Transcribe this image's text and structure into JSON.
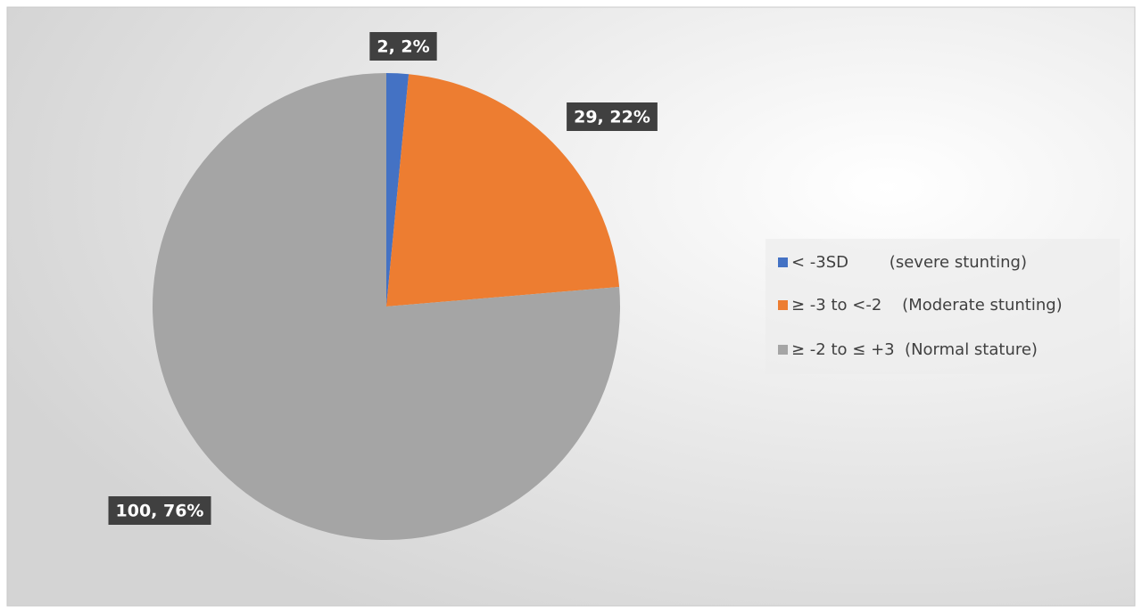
{
  "chart_data": {
    "type": "pie",
    "categories": [
      "< -3SD        (severe stunting)",
      "≥ -3 to <-2    (Moderate stunting)",
      "≥ -2 to ≤ +3  (Normal stature)"
    ],
    "values": [
      2,
      29,
      100
    ],
    "value_labels": [
      "2, 2%",
      "29, 22%",
      "100, 76%"
    ],
    "colors": [
      "#4472c4",
      "#ed7d31",
      "#a5a5a5"
    ],
    "legend": "right"
  }
}
